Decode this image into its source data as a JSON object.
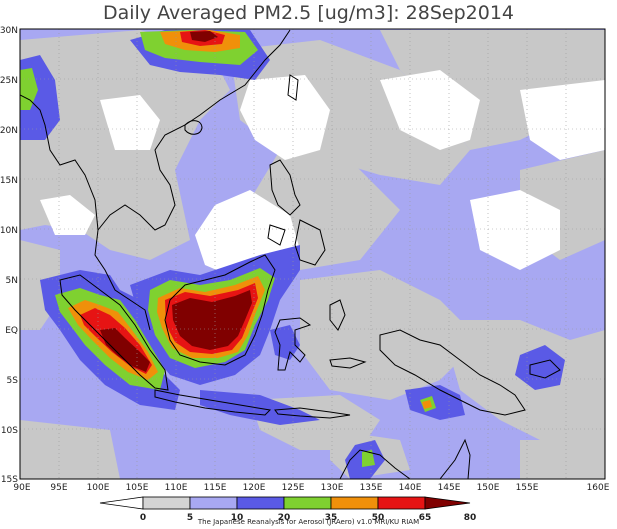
{
  "title": "Daily Averaged PM2.5 [ug/m3]: 28Sep2014",
  "credit": "The Japanese Reanalysis for Aerosol (JRAero) v1.0 MRI/KU RIAM",
  "lat_labels": [
    "30N",
    "25N",
    "20N",
    "15N",
    "10N",
    "5N",
    "EQ",
    "5S",
    "10S",
    "15S"
  ],
  "lon_labels": [
    "90E",
    "95E",
    "100E",
    "105E",
    "110E",
    "115E",
    "120E",
    "125E",
    "130E",
    "135E",
    "140E",
    "145E",
    "150E",
    "155E",
    "160E"
  ],
  "colorbar": {
    "tick_labels": [
      "0",
      "5",
      "10",
      "20",
      "35",
      "50",
      "65",
      "80"
    ],
    "colors": [
      "#ffffff",
      "#d4d4d4",
      "#a8a8f2",
      "#5a5ae6",
      "#7fd130",
      "#f0900a",
      "#e61414",
      "#800000"
    ]
  },
  "colors": {
    "white": "#ffffff",
    "gray": "#c8c8c8",
    "lightblue": "#a8a8f2",
    "blue": "#5a5ae6",
    "green": "#7fd130",
    "orange": "#f0900a",
    "red": "#e61414",
    "darkred": "#800000"
  }
}
